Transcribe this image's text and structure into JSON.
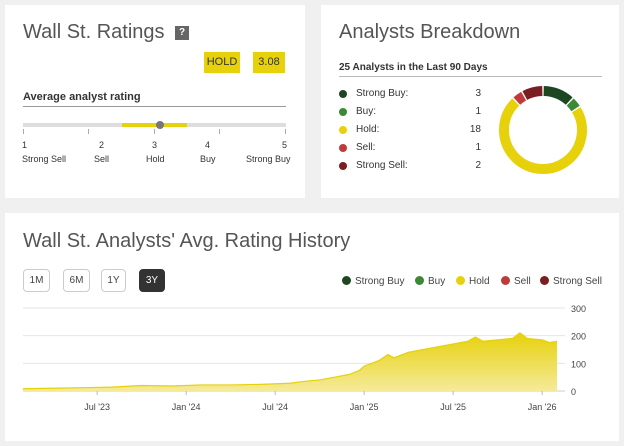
{
  "ratings": {
    "title": "Wall St. Ratings",
    "help": "?",
    "rating_badge": "HOLD",
    "score_badge": "3.08",
    "avg_label": "Average analyst rating",
    "score_value": 3.08,
    "range_low": 2.5,
    "range_high": 3.5,
    "scale": [
      {
        "num": "1",
        "label": "Strong Sell"
      },
      {
        "num": "2",
        "label": "Sell"
      },
      {
        "num": "3",
        "label": "Hold"
      },
      {
        "num": "4",
        "label": "Buy"
      },
      {
        "num": "5",
        "label": "Strong Buy"
      }
    ]
  },
  "breakdown": {
    "title": "Analysts Breakdown",
    "subtitle": "25 Analysts in the Last 90 Days",
    "rows": [
      {
        "label": "Strong Buy:",
        "count": "3",
        "value": 3,
        "color": "#1e4620"
      },
      {
        "label": "Buy:",
        "count": "1",
        "value": 1,
        "color": "#3a8a35"
      },
      {
        "label": "Hold:",
        "count": "18",
        "value": 18,
        "color": "#e6d10a"
      },
      {
        "label": "Sell:",
        "count": "1",
        "value": 1,
        "color": "#c0393b"
      },
      {
        "label": "Strong Sell:",
        "count": "2",
        "value": 2,
        "color": "#7a1e21"
      }
    ]
  },
  "history": {
    "title": "Wall St. Analysts' Avg. Rating History",
    "ranges": [
      "1M",
      "6M",
      "1Y",
      "3Y"
    ],
    "active_range": "3Y",
    "legend": [
      {
        "label": "Strong Buy",
        "color": "#1e4620"
      },
      {
        "label": "Buy",
        "color": "#3a8a35"
      },
      {
        "label": "Hold",
        "color": "#e6d10a"
      },
      {
        "label": "Sell",
        "color": "#c0393b"
      },
      {
        "label": "Strong Sell",
        "color": "#7a1e21"
      }
    ]
  },
  "chart_data": {
    "type": "area",
    "title": "Wall St. Analysts' Avg. Rating History",
    "xlabel": "",
    "ylabel": "",
    "ylim": [
      0,
      300
    ],
    "yticks": [
      "300",
      "200",
      "100",
      "0"
    ],
    "ytick_values": [
      300,
      200,
      100,
      0
    ],
    "xlim": [
      0,
      36
    ],
    "xticks": [
      "Jul '23",
      "Jan '24",
      "Jul '24",
      "Jan '25",
      "Jul '25",
      "Jan '26"
    ],
    "xtick_values": [
      5,
      11,
      17,
      23,
      29,
      35
    ],
    "series": [
      {
        "name": "Hold",
        "color": "#e6d10a",
        "x": [
          0,
          2,
          4,
          6,
          8,
          10,
          12,
          14,
          16,
          18,
          19,
          20,
          21,
          22,
          22.7,
          23,
          24,
          24.6,
          25,
          26,
          27,
          28,
          29,
          30,
          30.5,
          31,
          32,
          33,
          33.5,
          34,
          35,
          35.5,
          36
        ],
        "values": [
          8,
          10,
          12,
          14,
          20,
          18,
          22,
          22,
          24,
          28,
          35,
          40,
          50,
          60,
          75,
          90,
          110,
          132,
          120,
          140,
          150,
          160,
          170,
          180,
          195,
          180,
          185,
          190,
          210,
          190,
          185,
          175,
          180
        ]
      }
    ]
  }
}
